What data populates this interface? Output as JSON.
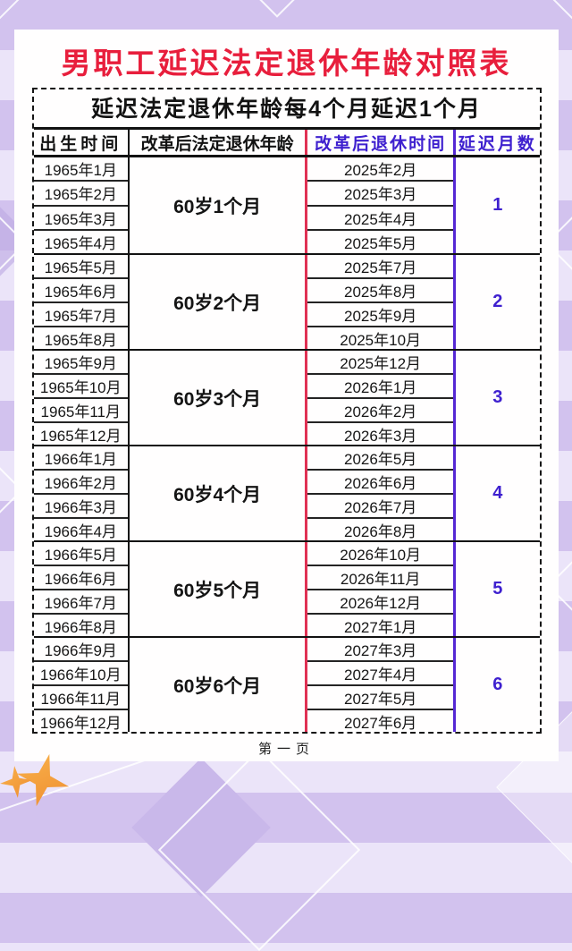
{
  "page": {
    "title": "男职工延迟法定退休年龄对照表",
    "subtitle": "延迟法定退休年龄每4个月延迟1个月",
    "footer": "第一页"
  },
  "table": {
    "headers": [
      {
        "label": "出生时间"
      },
      {
        "label": "改革后法定退休年龄"
      },
      {
        "label": "改革后退休时间"
      },
      {
        "label": "延迟月数"
      }
    ],
    "groups": [
      {
        "retirement_age": "60岁1个月",
        "delay_months": "1",
        "rows": [
          {
            "birth": "1965年1月",
            "retire": "2025年2月"
          },
          {
            "birth": "1965年2月",
            "retire": "2025年3月"
          },
          {
            "birth": "1965年3月",
            "retire": "2025年4月"
          },
          {
            "birth": "1965年4月",
            "retire": "2025年5月"
          }
        ]
      },
      {
        "retirement_age": "60岁2个月",
        "delay_months": "2",
        "rows": [
          {
            "birth": "1965年5月",
            "retire": "2025年7月"
          },
          {
            "birth": "1965年6月",
            "retire": "2025年8月"
          },
          {
            "birth": "1965年7月",
            "retire": "2025年9月"
          },
          {
            "birth": "1965年8月",
            "retire": "2025年10月"
          }
        ]
      },
      {
        "retirement_age": "60岁3个月",
        "delay_months": "3",
        "rows": [
          {
            "birth": "1965年9月",
            "retire": "2025年12月"
          },
          {
            "birth": "1965年10月",
            "retire": "2026年1月"
          },
          {
            "birth": "1965年11月",
            "retire": "2026年2月"
          },
          {
            "birth": "1965年12月",
            "retire": "2026年3月"
          }
        ]
      },
      {
        "retirement_age": "60岁4个月",
        "delay_months": "4",
        "rows": [
          {
            "birth": "1966年1月",
            "retire": "2026年5月"
          },
          {
            "birth": "1966年2月",
            "retire": "2026年6月"
          },
          {
            "birth": "1966年3月",
            "retire": "2026年7月"
          },
          {
            "birth": "1966年4月",
            "retire": "2026年8月"
          }
        ]
      },
      {
        "retirement_age": "60岁5个月",
        "delay_months": "5",
        "rows": [
          {
            "birth": "1966年5月",
            "retire": "2026年10月"
          },
          {
            "birth": "1966年6月",
            "retire": "2026年11月"
          },
          {
            "birth": "1966年7月",
            "retire": "2026年12月"
          },
          {
            "birth": "1966年8月",
            "retire": "2027年1月"
          }
        ]
      },
      {
        "retirement_age": "60岁6个月",
        "delay_months": "6",
        "rows": [
          {
            "birth": "1966年9月",
            "retire": "2027年3月"
          },
          {
            "birth": "1966年10月",
            "retire": "2027年4月"
          },
          {
            "birth": "1966年11月",
            "retire": "2027年5月"
          },
          {
            "birth": "1966年12月",
            "retire": "2027年6月"
          }
        ]
      }
    ]
  },
  "colors": {
    "title_red": "#e81e3c",
    "accent_blue": "#3e20cf",
    "line_red": "#e03154",
    "line_blue": "#5527d4",
    "star_a": "#f9b34d",
    "star_b": "#ee8d2f",
    "bg_a": "#d2c2ee",
    "bg_b": "#ebe4f9"
  }
}
